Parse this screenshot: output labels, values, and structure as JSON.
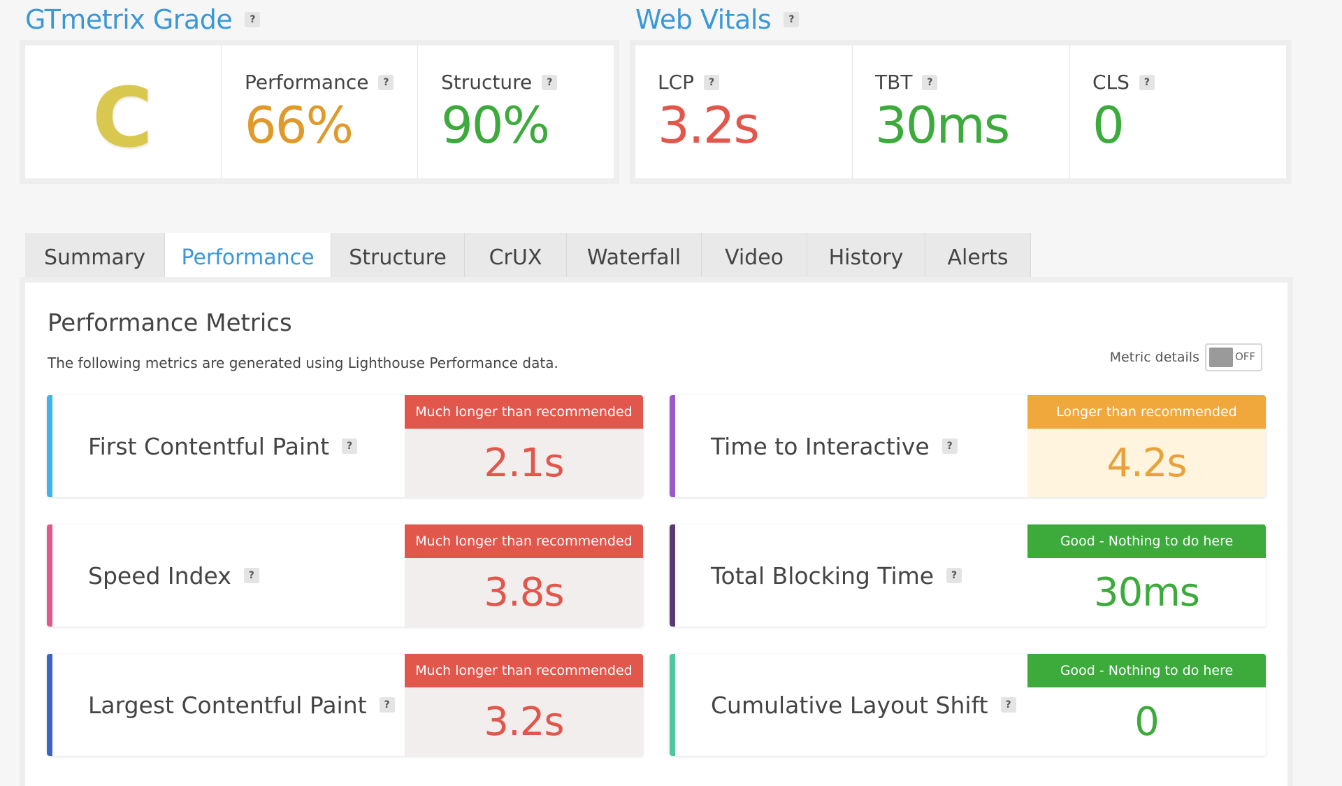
{
  "grade_section": {
    "title": "GTmetrix Grade",
    "help": "?",
    "grade": "C",
    "performance_label": "Performance",
    "performance_value": "66%",
    "structure_label": "Structure",
    "structure_value": "90%"
  },
  "web_vitals": {
    "title": "Web Vitals",
    "help": "?",
    "lcp_label": "LCP",
    "lcp_value": "3.2s",
    "tbt_label": "TBT",
    "tbt_value": "30ms",
    "cls_label": "CLS",
    "cls_value": "0"
  },
  "tabs": [
    {
      "label": "Summary"
    },
    {
      "label": "Performance"
    },
    {
      "label": "Structure"
    },
    {
      "label": "CrUX"
    },
    {
      "label": "Waterfall"
    },
    {
      "label": "Video"
    },
    {
      "label": "History"
    },
    {
      "label": "Alerts"
    }
  ],
  "active_tab": "Performance",
  "panel": {
    "title": "Performance Metrics",
    "subtitle": "The following metrics are generated using Lighthouse Performance data.",
    "toggle_label": "Metric details",
    "toggle_state": "OFF"
  },
  "metrics": [
    {
      "name": "First Contentful Paint",
      "status": "Much longer than recommended",
      "value": "2.1s",
      "level": "red",
      "bar_color": "#3fb3f0"
    },
    {
      "name": "Time to Interactive",
      "status": "Longer than recommended",
      "value": "4.2s",
      "level": "orange",
      "bar_color": "#9b59c8"
    },
    {
      "name": "Speed Index",
      "status": "Much longer than recommended",
      "value": "3.8s",
      "level": "red",
      "bar_color": "#e4578a"
    },
    {
      "name": "Total Blocking Time",
      "status": "Good - Nothing to do here",
      "value": "30ms",
      "level": "green",
      "bar_color": "#5a3a73"
    },
    {
      "name": "Largest Contentful Paint",
      "status": "Much longer than recommended",
      "value": "3.2s",
      "level": "red",
      "bar_color": "#3a64c8"
    },
    {
      "name": "Cumulative Layout Shift",
      "status": "Good - Nothing to do here",
      "value": "0",
      "level": "green",
      "bar_color": "#4ec7a0"
    }
  ],
  "colors": {
    "accent_blue": "#3a98d8",
    "grade_c": "#d9c84f",
    "performance_orange": "#e09a2a",
    "good_green": "#3cab3c",
    "bad_red": "#e2574c"
  }
}
